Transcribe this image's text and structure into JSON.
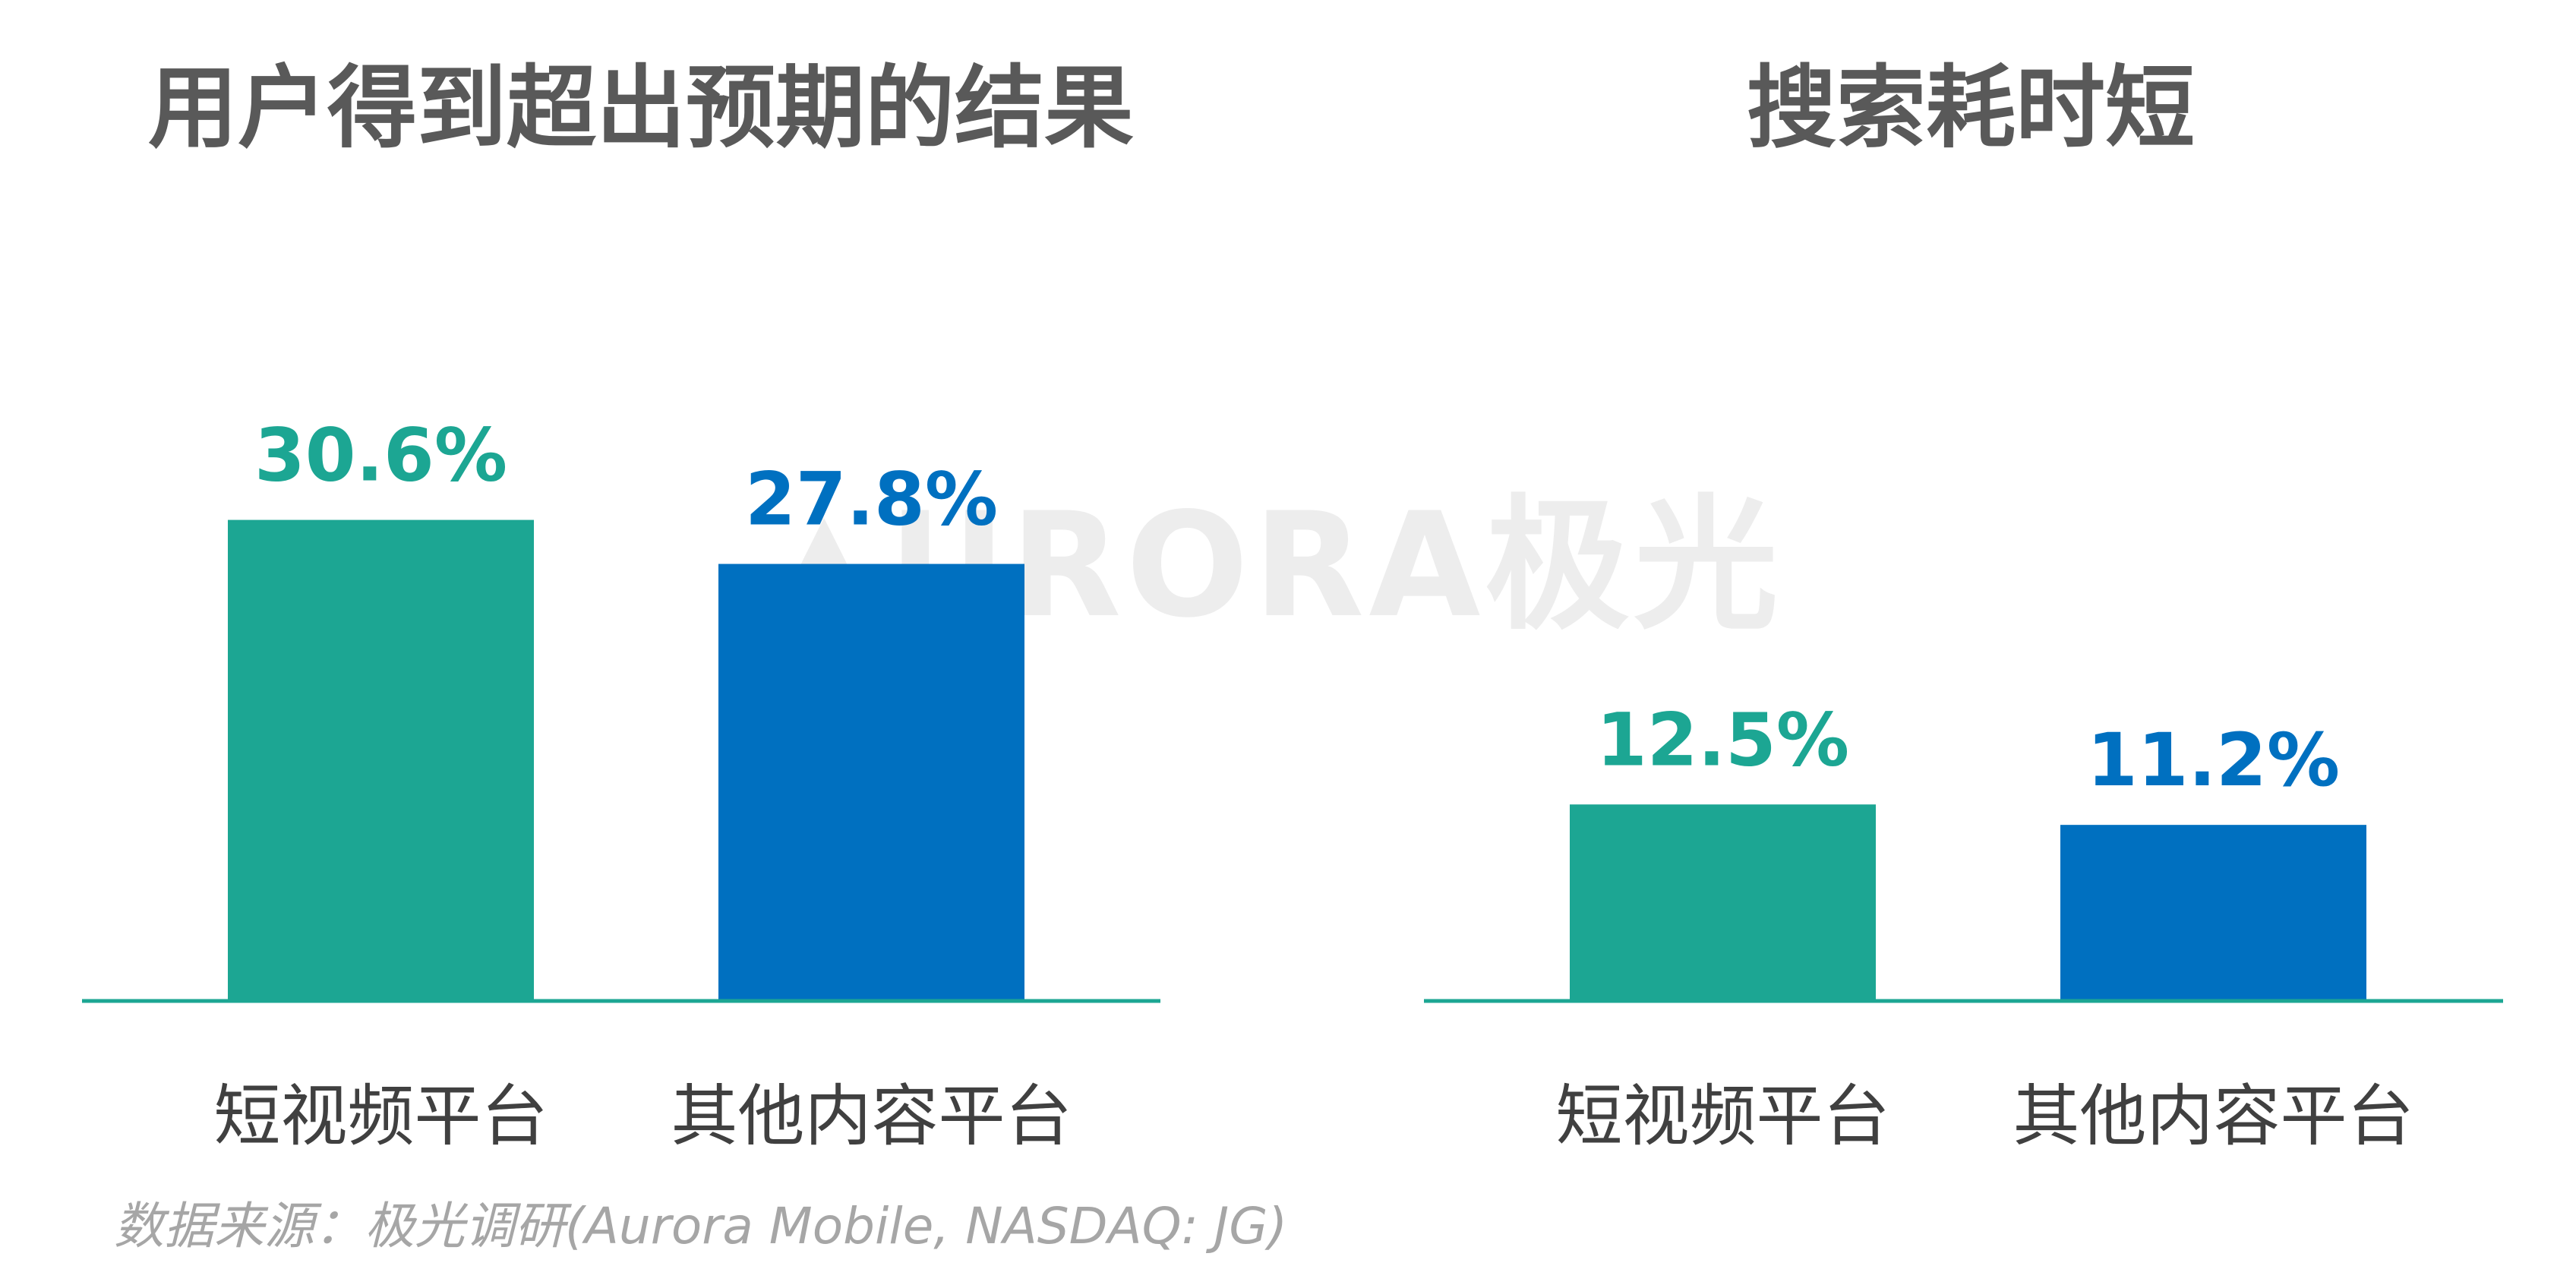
{
  "source": "数据来源：极光调研(Aurora Mobile, NASDAQ: JG)",
  "watermark": "URORA极光",
  "colors": {
    "short_video": "#1ca693",
    "other": "#0070c0",
    "axis": "#1ca693",
    "title": "#595959",
    "category": "#404040"
  },
  "chart_data": [
    {
      "type": "bar",
      "title": "用户得到超出预期的结果",
      "categories": [
        "短视频平台",
        "其他内容平台"
      ],
      "values": [
        30.6,
        27.8
      ],
      "value_labels": [
        "30.6%",
        "27.8%"
      ],
      "colors": [
        "#1ca693",
        "#0070c0"
      ],
      "xlabel": "",
      "ylabel": "",
      "grid": false
    },
    {
      "type": "bar",
      "title": "搜索耗时短",
      "categories": [
        "短视频平台",
        "其他内容平台"
      ],
      "values": [
        12.5,
        11.2
      ],
      "value_labels": [
        "12.5%",
        "11.2%"
      ],
      "colors": [
        "#1ca693",
        "#0070c0"
      ],
      "xlabel": "",
      "ylabel": "",
      "grid": false
    }
  ]
}
